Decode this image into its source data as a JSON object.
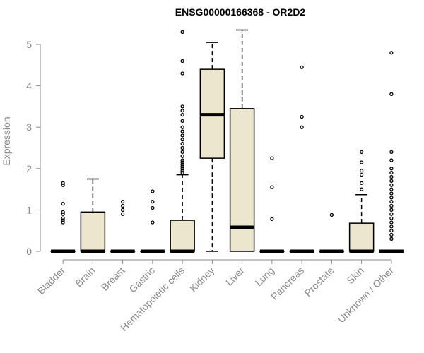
{
  "chart_data": {
    "type": "box",
    "title": "ENSG00000166368 - OR2D2",
    "xlabel": "",
    "ylabel": "Expression",
    "ylim": [
      0,
      5.35
    ],
    "yticks": [
      0,
      1,
      2,
      3,
      4,
      5
    ],
    "colors": {
      "box_fill": "#ede6cf",
      "stroke": "#000000",
      "axis": "#8a8a8a"
    },
    "categories": [
      "Bladder",
      "Brain",
      "Breast",
      "Gastric",
      "Hematopoietic cells",
      "Kidney",
      "Liver",
      "Lung",
      "Pancreas",
      "Prostate",
      "Skin",
      "Unknown / Other"
    ],
    "boxes": [
      {
        "category": "Bladder",
        "q1": 0,
        "median": 0,
        "q3": 0,
        "whisker_low": 0,
        "whisker_high": 0,
        "outliers": [
          0.7,
          0.75,
          0.8,
          0.9,
          0.95,
          1.15,
          1.6,
          1.65
        ]
      },
      {
        "category": "Brain",
        "q1": 0,
        "median": 0,
        "q3": 0.95,
        "whisker_low": 0,
        "whisker_high": 1.75,
        "outliers": []
      },
      {
        "category": "Breast",
        "q1": 0,
        "median": 0,
        "q3": 0,
        "whisker_low": 0,
        "whisker_high": 0,
        "outliers": [
          0.9,
          1.0,
          1.1,
          1.2
        ]
      },
      {
        "category": "Gastric",
        "q1": 0,
        "median": 0,
        "q3": 0,
        "whisker_low": 0,
        "whisker_high": 0,
        "outliers": [
          0.7,
          1.05,
          1.2,
          1.45
        ]
      },
      {
        "category": "Hematopoietic cells",
        "q1": 0,
        "median": 0,
        "q3": 0.75,
        "whisker_low": 0,
        "whisker_high": 1.85,
        "outliers": [
          1.9,
          1.95,
          2.0,
          2.05,
          2.1,
          2.15,
          2.2,
          2.3,
          2.4,
          2.5,
          2.6,
          2.7,
          2.8,
          2.9,
          3.0,
          3.15,
          3.3,
          3.4,
          3.5,
          4.3,
          4.6,
          5.3
        ]
      },
      {
        "category": "Kidney",
        "q1": 2.25,
        "median": 3.3,
        "q3": 4.4,
        "whisker_low": 0,
        "whisker_high": 5.05,
        "outliers": []
      },
      {
        "category": "Liver",
        "q1": 0,
        "median": 0.58,
        "q3": 3.45,
        "whisker_low": 0,
        "whisker_high": 5.35,
        "outliers": []
      },
      {
        "category": "Lung",
        "q1": 0,
        "median": 0,
        "q3": 0,
        "whisker_low": 0,
        "whisker_high": 0,
        "outliers": [
          0.78,
          1.55,
          2.25
        ]
      },
      {
        "category": "Pancreas",
        "q1": 0,
        "median": 0,
        "q3": 0,
        "whisker_low": 0,
        "whisker_high": 0,
        "outliers": [
          3.0,
          3.25,
          4.45
        ]
      },
      {
        "category": "Prostate",
        "q1": 0,
        "median": 0,
        "q3": 0,
        "whisker_low": 0,
        "whisker_high": 0,
        "outliers": [
          0.88
        ]
      },
      {
        "category": "Skin",
        "q1": 0,
        "median": 0,
        "q3": 0.68,
        "whisker_low": 0,
        "whisker_high": 1.37,
        "outliers": [
          1.5,
          1.65,
          1.85,
          1.95,
          2.15,
          2.4
        ]
      },
      {
        "category": "Unknown / Other",
        "q1": 0,
        "median": 0,
        "q3": 0,
        "whisker_low": 0,
        "whisker_high": 0,
        "outliers": [
          0.3,
          0.4,
          0.5,
          0.6,
          0.7,
          0.8,
          0.9,
          1.0,
          1.1,
          1.2,
          1.3,
          1.4,
          1.5,
          1.6,
          1.7,
          1.8,
          1.9,
          2.0,
          2.2,
          2.4,
          3.8,
          4.8
        ]
      }
    ]
  }
}
